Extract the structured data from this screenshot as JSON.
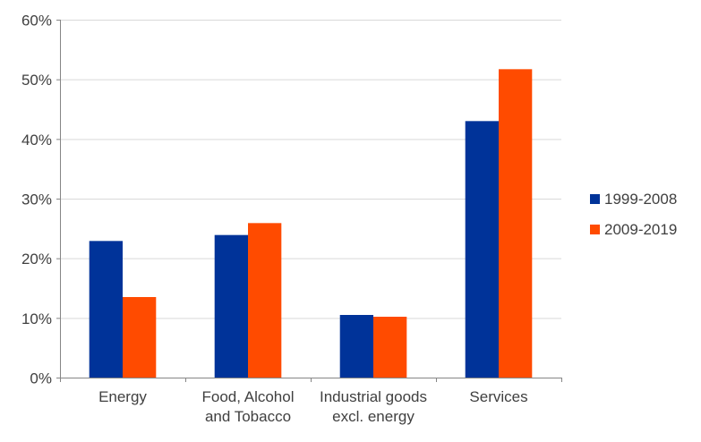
{
  "chart_data": {
    "type": "bar",
    "title": "",
    "xlabel": "",
    "ylabel": "",
    "categories": [
      [
        "Energy"
      ],
      [
        "Food, Alcohol",
        "and Tobacco"
      ],
      [
        "Industrial goods",
        "excl. energy"
      ],
      [
        "Services"
      ]
    ],
    "series": [
      {
        "name": "1999-2008",
        "color": "#003399",
        "values": [
          22.9,
          23.9,
          10.5,
          43.0
        ]
      },
      {
        "name": "2009-2019",
        "color": "#FF4B00",
        "values": [
          13.5,
          25.9,
          10.2,
          51.7
        ]
      }
    ],
    "ylim": [
      0,
      60
    ],
    "yticks": [
      0,
      10,
      20,
      30,
      40,
      50,
      60
    ],
    "ytick_labels": [
      "0%",
      "10%",
      "20%",
      "30%",
      "40%",
      "50%",
      "60%"
    ],
    "grid": true,
    "legend_position": "right"
  }
}
